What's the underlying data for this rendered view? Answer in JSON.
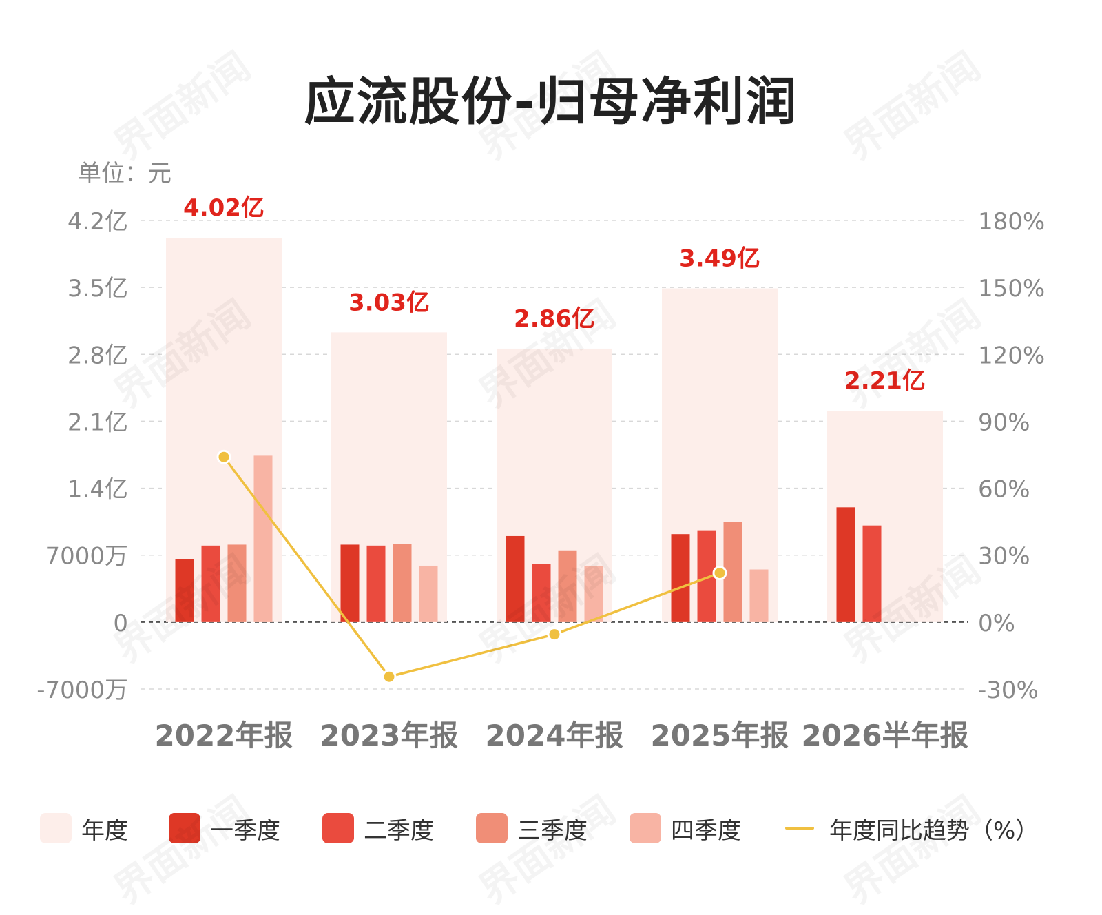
{
  "title": "应流股份-归母净利润",
  "unit_label": "单位：元",
  "watermark_text": "界面新闻",
  "colors": {
    "annual": "#fdeeea",
    "q1": "#de3826",
    "q2": "#ea4b3e",
    "q3": "#f08e77",
    "q4": "#f8b4a4",
    "trend": "#f0c040",
    "label_red": "#e0241c",
    "axis_text": "#888888",
    "category_text": "#777777"
  },
  "legend": [
    {
      "label": "年度",
      "color_key": "annual",
      "kind": "swatch"
    },
    {
      "label": "一季度",
      "color_key": "q1",
      "kind": "swatch"
    },
    {
      "label": "二季度",
      "color_key": "q2",
      "kind": "swatch"
    },
    {
      "label": "三季度",
      "color_key": "q3",
      "kind": "swatch"
    },
    {
      "label": "四季度",
      "color_key": "q4",
      "kind": "swatch"
    },
    {
      "label": "年度同比趋势（%）",
      "color_key": "trend",
      "kind": "line"
    }
  ],
  "chart_data": {
    "type": "bar",
    "categories": [
      "2022年报",
      "2023年报",
      "2024年报",
      "2025年报",
      "2026半年报"
    ],
    "left_axis": {
      "ticks": [
        -70000000,
        0,
        70000000,
        140000000,
        210000000,
        280000000,
        350000000,
        420000000
      ],
      "tick_labels": [
        "-7000万",
        "0",
        "7000万",
        "1.4亿",
        "2.1亿",
        "2.8亿",
        "3.5亿",
        "4.2亿"
      ],
      "range": [
        -70000000,
        420000000
      ]
    },
    "right_axis": {
      "ticks": [
        -30,
        0,
        30,
        60,
        90,
        120,
        150,
        180
      ],
      "tick_labels": [
        "-30%",
        "0%",
        "30%",
        "60%",
        "90%",
        "120%",
        "150%",
        "180%"
      ],
      "range": [
        -30,
        180
      ]
    },
    "series": [
      {
        "name": "年度",
        "values": [
          402000000,
          303000000,
          286000000,
          349000000,
          221000000
        ]
      },
      {
        "name": "一季度",
        "values": [
          66000000,
          81000000,
          90000000,
          92000000,
          120000000
        ]
      },
      {
        "name": "二季度",
        "values": [
          80000000,
          80000000,
          61000000,
          96000000,
          101000000
        ]
      },
      {
        "name": "三季度",
        "values": [
          81000000,
          82000000,
          75000000,
          105000000,
          null
        ]
      },
      {
        "name": "四季度",
        "values": [
          174000000,
          59000000,
          59000000,
          55000000,
          null
        ]
      }
    ],
    "annual_labels": [
      "4.02亿",
      "3.03亿",
      "2.86亿",
      "3.49亿",
      "2.21亿"
    ],
    "trend": {
      "name": "年度同比趋势（%）",
      "values": [
        74,
        -24.5,
        -5.5,
        22,
        null
      ]
    },
    "grid": true,
    "legend_position": "bottom"
  }
}
